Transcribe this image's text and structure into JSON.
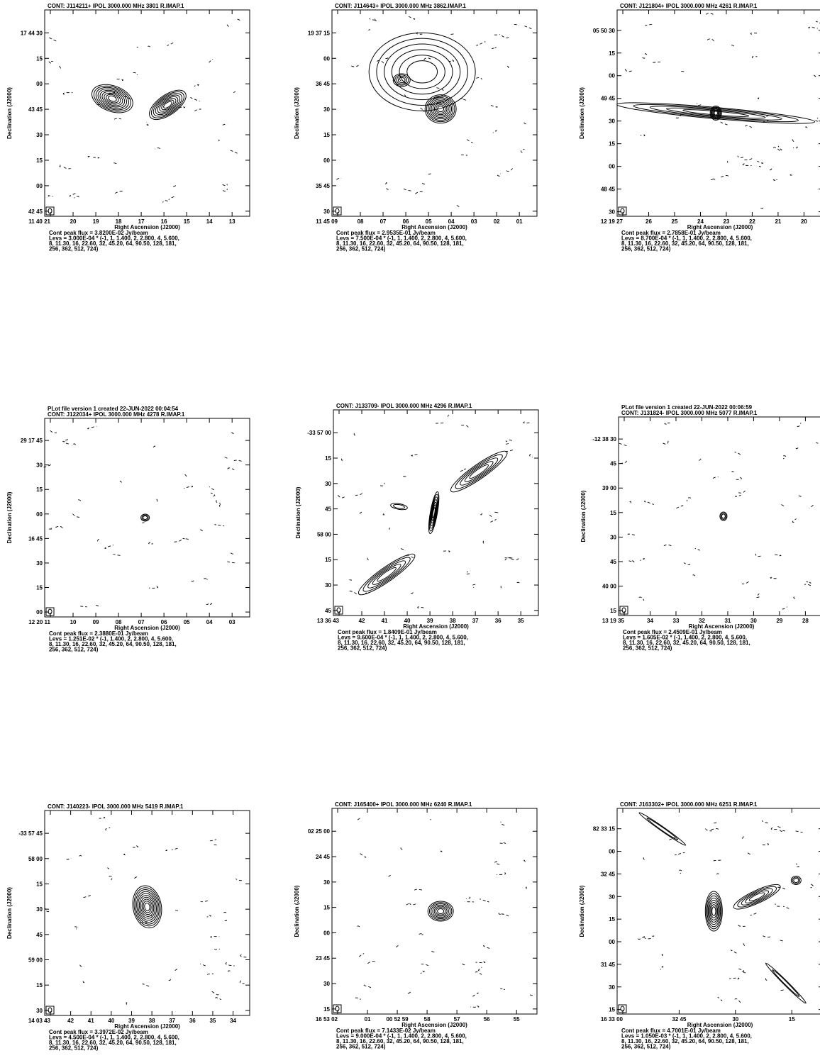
{
  "panels": [
    {
      "header": [
        "CONT: J114211+  IPOL  3000.000 MHz  3801 R.IMAP.1"
      ],
      "yticks": [
        "17 44 30",
        "15",
        "00",
        "43 45",
        "30",
        "15",
        "00",
        "42 45"
      ],
      "xticks": [
        "11 40 21",
        "20",
        "19",
        "18",
        "17",
        "16",
        "15",
        "14",
        "13"
      ],
      "xlabel": "Right Ascension (J2000)",
      "ylabel": "Declination (J2000)",
      "caption": [
        "Cont peak flux =  3.8200E-02 Jy/beam",
        "Levs = 3.000E-04 * (-1, 1, 1.400, 2, 2.800, 4, 5.600,",
        "8, 11.30, 16, 22.60, 32, 45.20, 64, 90.50, 128, 181,",
        "256, 362, 512, 724)"
      ]
    },
    {
      "header": [
        "CONT: J114643+  IPOL  3000.000 MHz  3862.IMAP.1"
      ],
      "yticks": [
        "19 37 15",
        "00",
        "36 45",
        "30",
        "15",
        "00",
        "35 45",
        "30"
      ],
      "xticks": [
        "11 45 09",
        "08",
        "07",
        "06",
        "05",
        "04",
        "03",
        "02",
        "01"
      ],
      "xlabel": "Right Ascension (J2000)",
      "ylabel": "Declination (J2000)",
      "caption": [
        "Cont peak flux =  2.9535E-01 Jy/beam",
        "Levs = 7.500E-04 * (-1, 1, 1.400, 2, 2.800, 4, 5.600,",
        "8, 11.30, 16, 22.60, 32, 45.20, 64, 90.50, 128, 181,",
        "256, 362, 512, 724)"
      ]
    },
    {
      "header": [
        "CONT: J121804+  IPOL  3000.000 MHz  4261 R.IMAP.1"
      ],
      "yticks": [
        "05 50 30",
        "15",
        "00",
        "49 45",
        "30",
        "15",
        "00",
        "48 45",
        "30"
      ],
      "xticks": [
        "12 19 27",
        "26",
        "25",
        "24",
        "23",
        "22",
        "21",
        "20"
      ],
      "xlabel": "Right Ascension (J2000)",
      "ylabel": "Declination (J2000)",
      "caption": [
        "Cont peak flux =  2.7858E-01 Jy/beam",
        "Levs = 8.700E-04 * (-1, 1, 1.400, 2, 2.800, 4, 5.600,",
        "8, 11.30, 16, 22.60, 32, 45.20, 64, 90.50, 128, 181,",
        "256, 362, 512, 724)"
      ]
    },
    {
      "header": [
        "PLot file version 1  created 22-JUN-2022 00:04:54",
        "CONT: J122034+  IPOL  3000.000 MHz  4278 R.IMAP.1"
      ],
      "yticks": [
        "29 17 45",
        "30",
        "15",
        "00",
        "16 45",
        "30",
        "15",
        "00"
      ],
      "xticks": [
        "12 20 11",
        "10",
        "09",
        "08",
        "07",
        "06",
        "05",
        "04",
        "03"
      ],
      "xlabel": "Right Ascension (J2000)",
      "ylabel": "Declination (J2000)",
      "caption": [
        "Cont peak flux =  2.3880E-01 Jy/beam",
        "Levs = 1.251E-02 * (-1, 1.400, 2, 2.800, 4, 5.600,",
        "8, 11.30, 16, 22.60, 32, 45.20, 64, 90.50, 128, 181,",
        "256, 362, 512, 724)"
      ]
    },
    {
      "header": [
        "CONT: J133709-  IPOL  3000.000 MHz  4296 R.IMAP.1"
      ],
      "yticks": [
        "-33 57 00",
        "15",
        "30",
        "45",
        "58 00",
        "15",
        "30",
        "45"
      ],
      "xticks": [
        "13 36 43",
        "42",
        "41",
        "40",
        "39",
        "38",
        "37",
        "36",
        "35"
      ],
      "xlabel": "Right Ascension (J2000)",
      "ylabel": "Declination (J2000)",
      "caption": [
        "Cont peak flux =  1.8409E-01 Jy/beam",
        "Levs = 9.600E-04 * (-1, 1, 1.400, 2, 2.800, 4, 5.600,",
        "8, 11.30, 16, 22.60, 32, 45.20, 64, 90.50, 128, 181,",
        "256, 362, 512, 724)"
      ]
    },
    {
      "header": [
        "PLot file version 1  created 22-JUN-2022 00:06:59",
        "CONT: J131824-  IPOL  3000.000 MHz  5077 R.IMAP.1"
      ],
      "yticks": [
        "-12 38 30",
        "45",
        "39 00",
        "15",
        "30",
        "45",
        "40 00",
        "15"
      ],
      "xticks": [
        "13 19 35",
        "34",
        "33",
        "32",
        "31",
        "30",
        "29",
        "28"
      ],
      "xlabel": "Right Ascension (J2000)",
      "ylabel": "Declination (J2000)",
      "caption": [
        "Cont peak flux =  2.4509E-01 Jy/beam",
        "Levs = 1.605E-02 * (-1, 1.400, 2, 2.800, 4, 5.600,",
        "8, 11.30, 16, 22.60, 32, 45.20, 64, 90.50, 128, 181,",
        "256, 362, 512, 724)"
      ]
    },
    {
      "header": [
        "CONT: J140223-  IPOL  3000.000 MHz  5419 R.IMAP.1"
      ],
      "yticks": [
        "-33 57 45",
        "58 00",
        "15",
        "30",
        "45",
        "59 00",
        "15",
        "30"
      ],
      "xticks": [
        "14 03 43",
        "42",
        "41",
        "40",
        "39",
        "38",
        "37",
        "36",
        "35",
        "34"
      ],
      "xlabel": "Right Ascension (J2000)",
      "ylabel": "Declination (J2000)",
      "caption": [
        "Cont peak flux =  3.3972E-02 Jy/beam",
        "Levs = 4.500E-04 * (-1, 1, 1.400, 2, 2.800, 4, 5.600,",
        "8, 11.30, 16, 22.60, 32, 45.20, 64, 90.50, 128, 181,",
        "256, 362, 512, 724)"
      ]
    },
    {
      "header": [
        "CONT: J165400+  IPOL  3000.000 MHz  6240 R.IMAP.1"
      ],
      "yticks": [
        "02 25 00",
        "24 45",
        "30",
        "15",
        "00",
        "23 45",
        "30",
        "15"
      ],
      "xticks": [
        "16 53 02",
        "01",
        "00  52 59",
        "58",
        "57",
        "56",
        "55"
      ],
      "xlabel": "Right Ascension (J2000)",
      "ylabel": "Declination (J2000)",
      "caption": [
        "Cont peak flux =  7.1433E-02 Jy/beam",
        "Levs = 9.000E-04 * (-1, 1, 1.400, 2, 2.800, 4, 5.600,",
        "8, 11.30, 16, 22.60, 32, 45.20, 64, 90.50, 128, 181,",
        "256, 362, 512, 724)"
      ]
    },
    {
      "header": [
        "CONT: J163302+  IPOL  3000.000 MHz  6251 R.IMAP.1"
      ],
      "yticks": [
        "82 33 15",
        "00",
        "32 45",
        "30",
        "15",
        "00",
        "31 45",
        "30",
        "15"
      ],
      "xticks": [
        "16 33 00",
        "32 45",
        "30",
        "15"
      ],
      "xlabel": "Right Ascension (J2000)",
      "ylabel": "Declination (J2000)",
      "caption": [
        "Cont peak flux =  4.7001E-01 Jy/beam",
        "Levs = 1.050E-03 * (-1, 1, 1.400, 2, 2.800, 4, 5.600,",
        "8, 11.30, 16, 22.60, 32, 45.20, 64, 90.50, 128, 181,",
        "256, 362, 512, 724)"
      ]
    }
  ]
}
